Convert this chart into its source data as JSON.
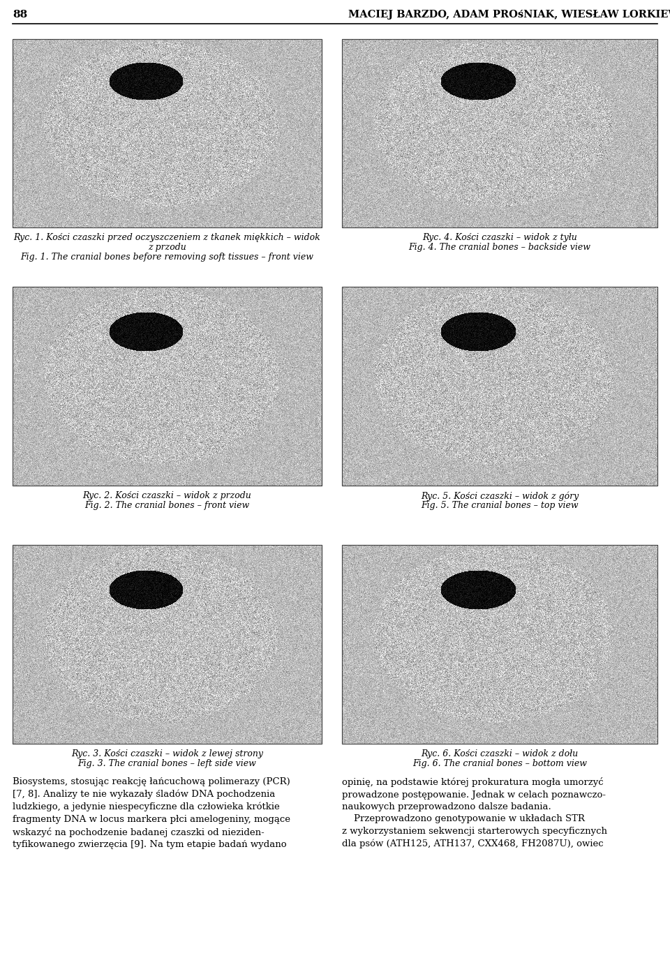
{
  "page_number": "88",
  "header_text": "MACIEJ BARZDO, ADAM PROśNIAK, WIESŁAW LORKIEWICZ I WSP.",
  "bg_color": "#ffffff",
  "captions": [
    {
      "italic": "Ryc. 1.",
      "rest_italic": " Kości czaszki przed oczyszczeniem z tkanek miękkich – widok\nz przodu",
      "fig_italic": "Fig. 1.",
      "fig_normal": " The cranial bones before removing soft tissues – front view",
      "multiline": true
    },
    {
      "italic": "Ryc. 4.",
      "rest_italic": " Kości czaszki – widok z tyłu",
      "fig_italic": "Fig. 4.",
      "fig_normal": " The cranial bones – backside view",
      "multiline": false
    },
    {
      "italic": "Ryc. 2.",
      "rest_italic": " Kości czaszki – widok z przodu",
      "fig_italic": "Fig. 2.",
      "fig_normal": " The cranial bones – front view",
      "multiline": false
    },
    {
      "italic": "Ryc. 5.",
      "rest_italic": " Kości czaszki – widok z góry",
      "fig_italic": "Fig. 5.",
      "fig_normal": " The cranial bones – top view",
      "multiline": false
    },
    {
      "italic": "Ryc. 3.",
      "rest_italic": " Kości czaszki – widok z lewej strony",
      "fig_italic": "Fig. 3.",
      "fig_normal": " The cranial bones – left side view",
      "multiline": false
    },
    {
      "italic": "Ryc. 6.",
      "rest_italic": " Kości czaszki – widok z dołu",
      "fig_italic": "Fig. 6.",
      "fig_normal": " The cranial bones – bottom view",
      "multiline": false
    }
  ],
  "body_text_left": "Biosystems, stosując reakcję łańcuchową polimerazy (PCR)\n[7, 8]. Analizy te nie wykazały śladów DNA pochodzenia\nludzkiego, a jedynie niespecyficzne dla człowieka krótkie\nfragmenty DNA w locus markera płci amelogeniny, mogące\nwskazyć na pochodzenie badanej czaszki od nieziden-\ntyfikowanego zwierzęcia [9]. Na tym etapie badań wydano",
  "body_text_right": "opinię, na podstawie której prokuratura mogła umorzyć\nprowadzone postępowanie. Jednak w celach poznawczo-\nnaukowych przeprowadzono dalsze badania.\n    Przeprowadzono genotypowanie w układach STR\nz wykorzystaniem sekwencji starterowych specyficznych\ndla psów (ATH125, ATH137, CXX468, FH2087U), owiec"
}
